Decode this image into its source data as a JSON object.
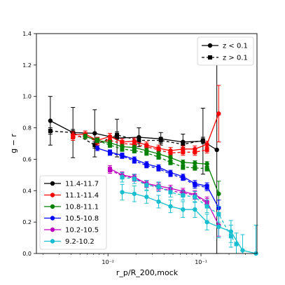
{
  "chart_data": {
    "type": "line",
    "xscale": "log",
    "xlim": [
      0.0017,
      0.4
    ],
    "ylim": [
      0.0,
      1.4
    ],
    "xlabel": "r_p/R_200,mock",
    "ylabel": "g − r",
    "xticks": [
      {
        "value": 0.01,
        "label": "10⁻²"
      },
      {
        "value": 0.1,
        "label": "10⁻¹"
      }
    ],
    "yticks": [
      {
        "value": 0.0,
        "label": "0.0"
      },
      {
        "value": 0.2,
        "label": "0.2"
      },
      {
        "value": 0.4,
        "label": "0.4"
      },
      {
        "value": 0.6,
        "label": "0.6"
      },
      {
        "value": 0.8,
        "label": "0.8"
      },
      {
        "value": 1.0,
        "label": "1.0"
      },
      {
        "value": 1.2,
        "label": "1.2"
      },
      {
        "value": 1.4,
        "label": "1.4"
      }
    ],
    "legend_style": {
      "placement": "top-right",
      "entries": [
        {
          "label": "z < 0.1",
          "linestyle": "solid",
          "marker": "circle"
        },
        {
          "label": "z > 0.1",
          "linestyle": "dashed",
          "marker": "square"
        }
      ]
    },
    "legend_mass_placement": "lower-left",
    "series": [
      {
        "name": "11.4-11.7",
        "color": "#000000",
        "z_low": {
          "x": [
            0.0024,
            0.0042,
            0.0072,
            0.0125,
            0.0215,
            0.037,
            0.064,
            0.105,
            0.148
          ],
          "y": [
            0.845,
            0.77,
            0.765,
            0.735,
            0.74,
            0.73,
            0.71,
            0.715,
            0.66
          ],
          "err": [
            0.155,
            0.16,
            0.15,
            0.12,
            0.06,
            0.04,
            0.05,
            0.21,
            0.66
          ]
        },
        "z_high": {
          "x": [
            0.0024,
            0.0042,
            0.0072,
            0.0125,
            0.0215,
            0.037,
            0.064,
            0.105
          ],
          "y": [
            0.78,
            0.77,
            0.69,
            0.755,
            0.72,
            0.72,
            0.695,
            0.72
          ],
          "err": [
            0.02,
            0.02,
            0.02,
            0.02,
            0.02,
            0.02,
            0.02,
            0.02
          ]
        }
      },
      {
        "name": "11.1-11.4",
        "color": "#ff0000",
        "z_low": {
          "x": [
            0.0042,
            0.0057,
            0.0077,
            0.0105,
            0.0142,
            0.0192,
            0.026,
            0.035,
            0.047,
            0.064,
            0.086,
            0.116,
            0.155
          ],
          "y": [
            0.755,
            0.76,
            0.72,
            0.745,
            0.71,
            0.715,
            0.69,
            0.67,
            0.655,
            0.665,
            0.665,
            0.695,
            0.89
          ],
          "err": [
            0.02,
            0.02,
            0.02,
            0.02,
            0.02,
            0.02,
            0.02,
            0.02,
            0.02,
            0.02,
            0.02,
            0.02,
            0.18
          ]
        },
        "z_high": {
          "x": [
            0.0042,
            0.0057,
            0.0077,
            0.0105,
            0.0142,
            0.0192,
            0.026,
            0.035,
            0.047,
            0.064,
            0.086,
            0.116
          ],
          "y": [
            0.74,
            0.75,
            0.71,
            0.72,
            0.7,
            0.695,
            0.68,
            0.66,
            0.64,
            0.645,
            0.645,
            0.66
          ],
          "err": [
            0.02,
            0.02,
            0.02,
            0.02,
            0.02,
            0.02,
            0.02,
            0.02,
            0.02,
            0.02,
            0.02,
            0.02
          ]
        }
      },
      {
        "name": "10.8-11.1",
        "color": "#008000",
        "z_low": {
          "x": [
            0.0057,
            0.0077,
            0.0105,
            0.0142,
            0.0192,
            0.026,
            0.035,
            0.047,
            0.064,
            0.086,
            0.116,
            0.155
          ],
          "y": [
            0.745,
            0.72,
            0.705,
            0.68,
            0.675,
            0.655,
            0.635,
            0.61,
            0.58,
            0.575,
            0.57,
            0.38
          ],
          "err": [
            0.015,
            0.015,
            0.015,
            0.015,
            0.015,
            0.015,
            0.015,
            0.015,
            0.015,
            0.015,
            0.015,
            0.08
          ]
        },
        "z_high": {
          "x": [
            0.0077,
            0.0105,
            0.0142,
            0.0192,
            0.026,
            0.035,
            0.047,
            0.064,
            0.086,
            0.116
          ],
          "y": [
            0.72,
            0.69,
            0.665,
            0.655,
            0.64,
            0.615,
            0.58,
            0.55,
            0.545,
            0.54
          ],
          "err": [
            0.015,
            0.015,
            0.015,
            0.015,
            0.015,
            0.015,
            0.015,
            0.015,
            0.015,
            0.015
          ]
        }
      },
      {
        "name": "10.5-10.8",
        "color": "#0000ff",
        "z_low": {
          "x": [
            0.0077,
            0.0105,
            0.0142,
            0.0192,
            0.026,
            0.035,
            0.047,
            0.064,
            0.086,
            0.116,
            0.155
          ],
          "y": [
            0.67,
            0.645,
            0.625,
            0.6,
            0.57,
            0.55,
            0.515,
            0.49,
            0.445,
            0.43,
            0.29
          ],
          "err": [
            0.015,
            0.015,
            0.015,
            0.015,
            0.015,
            0.015,
            0.015,
            0.015,
            0.02,
            0.02,
            0.05
          ]
        },
        "z_high": {
          "x": [
            0.0105,
            0.0142,
            0.0192,
            0.026,
            0.035,
            0.047,
            0.064,
            0.086,
            0.116
          ],
          "y": [
            0.64,
            0.62,
            0.59,
            0.56,
            0.54,
            0.505,
            0.48,
            0.435,
            0.42
          ],
          "err": [
            0.015,
            0.015,
            0.015,
            0.015,
            0.015,
            0.015,
            0.015,
            0.02,
            0.02
          ]
        }
      },
      {
        "name": "10.2-10.5",
        "color": "#bf00bf",
        "z_low": {
          "x": [
            0.0105,
            0.0142,
            0.0192,
            0.026,
            0.035,
            0.047,
            0.064,
            0.086,
            0.116,
            0.155
          ],
          "y": [
            0.54,
            0.5,
            0.485,
            0.445,
            0.43,
            0.415,
            0.395,
            0.375,
            0.33,
            0.18
          ],
          "err": [
            0.02,
            0.02,
            0.02,
            0.02,
            0.02,
            0.02,
            0.02,
            0.025,
            0.03,
            0.07
          ]
        },
        "z_high": {
          "x": [
            0.0105,
            0.0142,
            0.0192,
            0.026,
            0.035,
            0.047,
            0.064,
            0.086,
            0.116
          ],
          "y": [
            0.53,
            0.495,
            0.48,
            0.44,
            0.42,
            0.4,
            0.385,
            0.37,
            0.32
          ],
          "err": [
            0.02,
            0.02,
            0.02,
            0.02,
            0.02,
            0.02,
            0.02,
            0.025,
            0.03
          ]
        }
      },
      {
        "name": "9.2-10.2",
        "color": "#17becf",
        "z_low": {
          "x": [
            0.0142,
            0.0192,
            0.026,
            0.035,
            0.047,
            0.064,
            0.086,
            0.116,
            0.155,
            0.21,
            0.28,
            0.39
          ],
          "y": [
            0.39,
            0.38,
            0.36,
            0.33,
            0.3,
            0.28,
            0.28,
            0.2,
            0.17,
            0.14,
            0.02,
            0.0
          ],
          "err": [
            0.05,
            0.05,
            0.04,
            0.04,
            0.04,
            0.05,
            0.05,
            0.05,
            0.07,
            0.07,
            0.1,
            0.18
          ]
        },
        "z_high": {
          "x": [
            0.0142,
            0.0192,
            0.026,
            0.035,
            0.047,
            0.064,
            0.086,
            0.116,
            0.155,
            0.21,
            0.24
          ],
          "y": [
            0.485,
            0.475,
            0.435,
            0.425,
            0.39,
            0.37,
            0.36,
            0.3,
            0.25,
            0.11,
            0.06
          ],
          "err": [
            0.03,
            0.03,
            0.03,
            0.03,
            0.03,
            0.03,
            0.035,
            0.04,
            0.05,
            0.07,
            0.07
          ]
        }
      }
    ]
  }
}
